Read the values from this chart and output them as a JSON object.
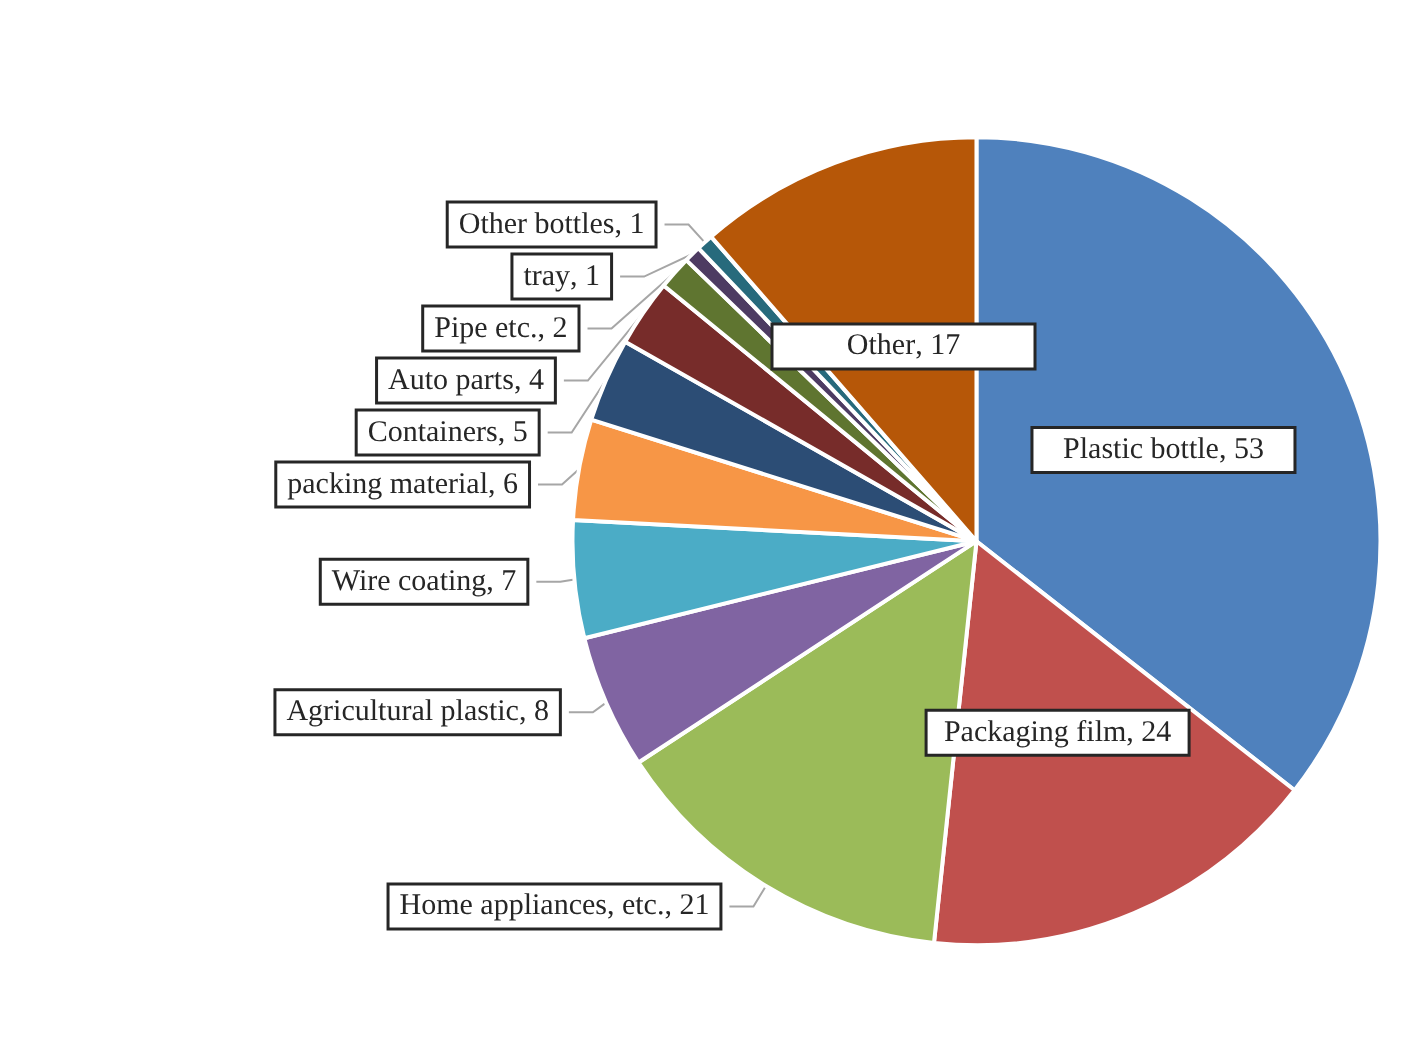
{
  "chart_data": {
    "type": "pie",
    "categories": [
      "Plastic bottle",
      "Packaging film",
      "Home appliances, etc.",
      "Agricultural plastic",
      "Wire coating",
      "packing material",
      "Containers",
      "Auto parts",
      "Pipe etc.",
      "tray",
      "Other bottles",
      "Other"
    ],
    "values": [
      53,
      24,
      21,
      8,
      7,
      6,
      5,
      4,
      2,
      1,
      1,
      17
    ],
    "colors": [
      "#4f81bd",
      "#c0504d",
      "#9bbb59",
      "#8064a2",
      "#4bacc6",
      "#f79646",
      "#2c4d75",
      "#772c2a",
      "#5f7530",
      "#4d3b62",
      "#276a7c",
      "#b65708"
    ],
    "value_labels": [
      ", 53",
      ", 24",
      ", 21",
      ", 8",
      ", 7",
      ", 6",
      ", 5",
      ", 4",
      ", 2",
      ", 1",
      ", 1",
      ", 17"
    ],
    "legend": false
  }
}
